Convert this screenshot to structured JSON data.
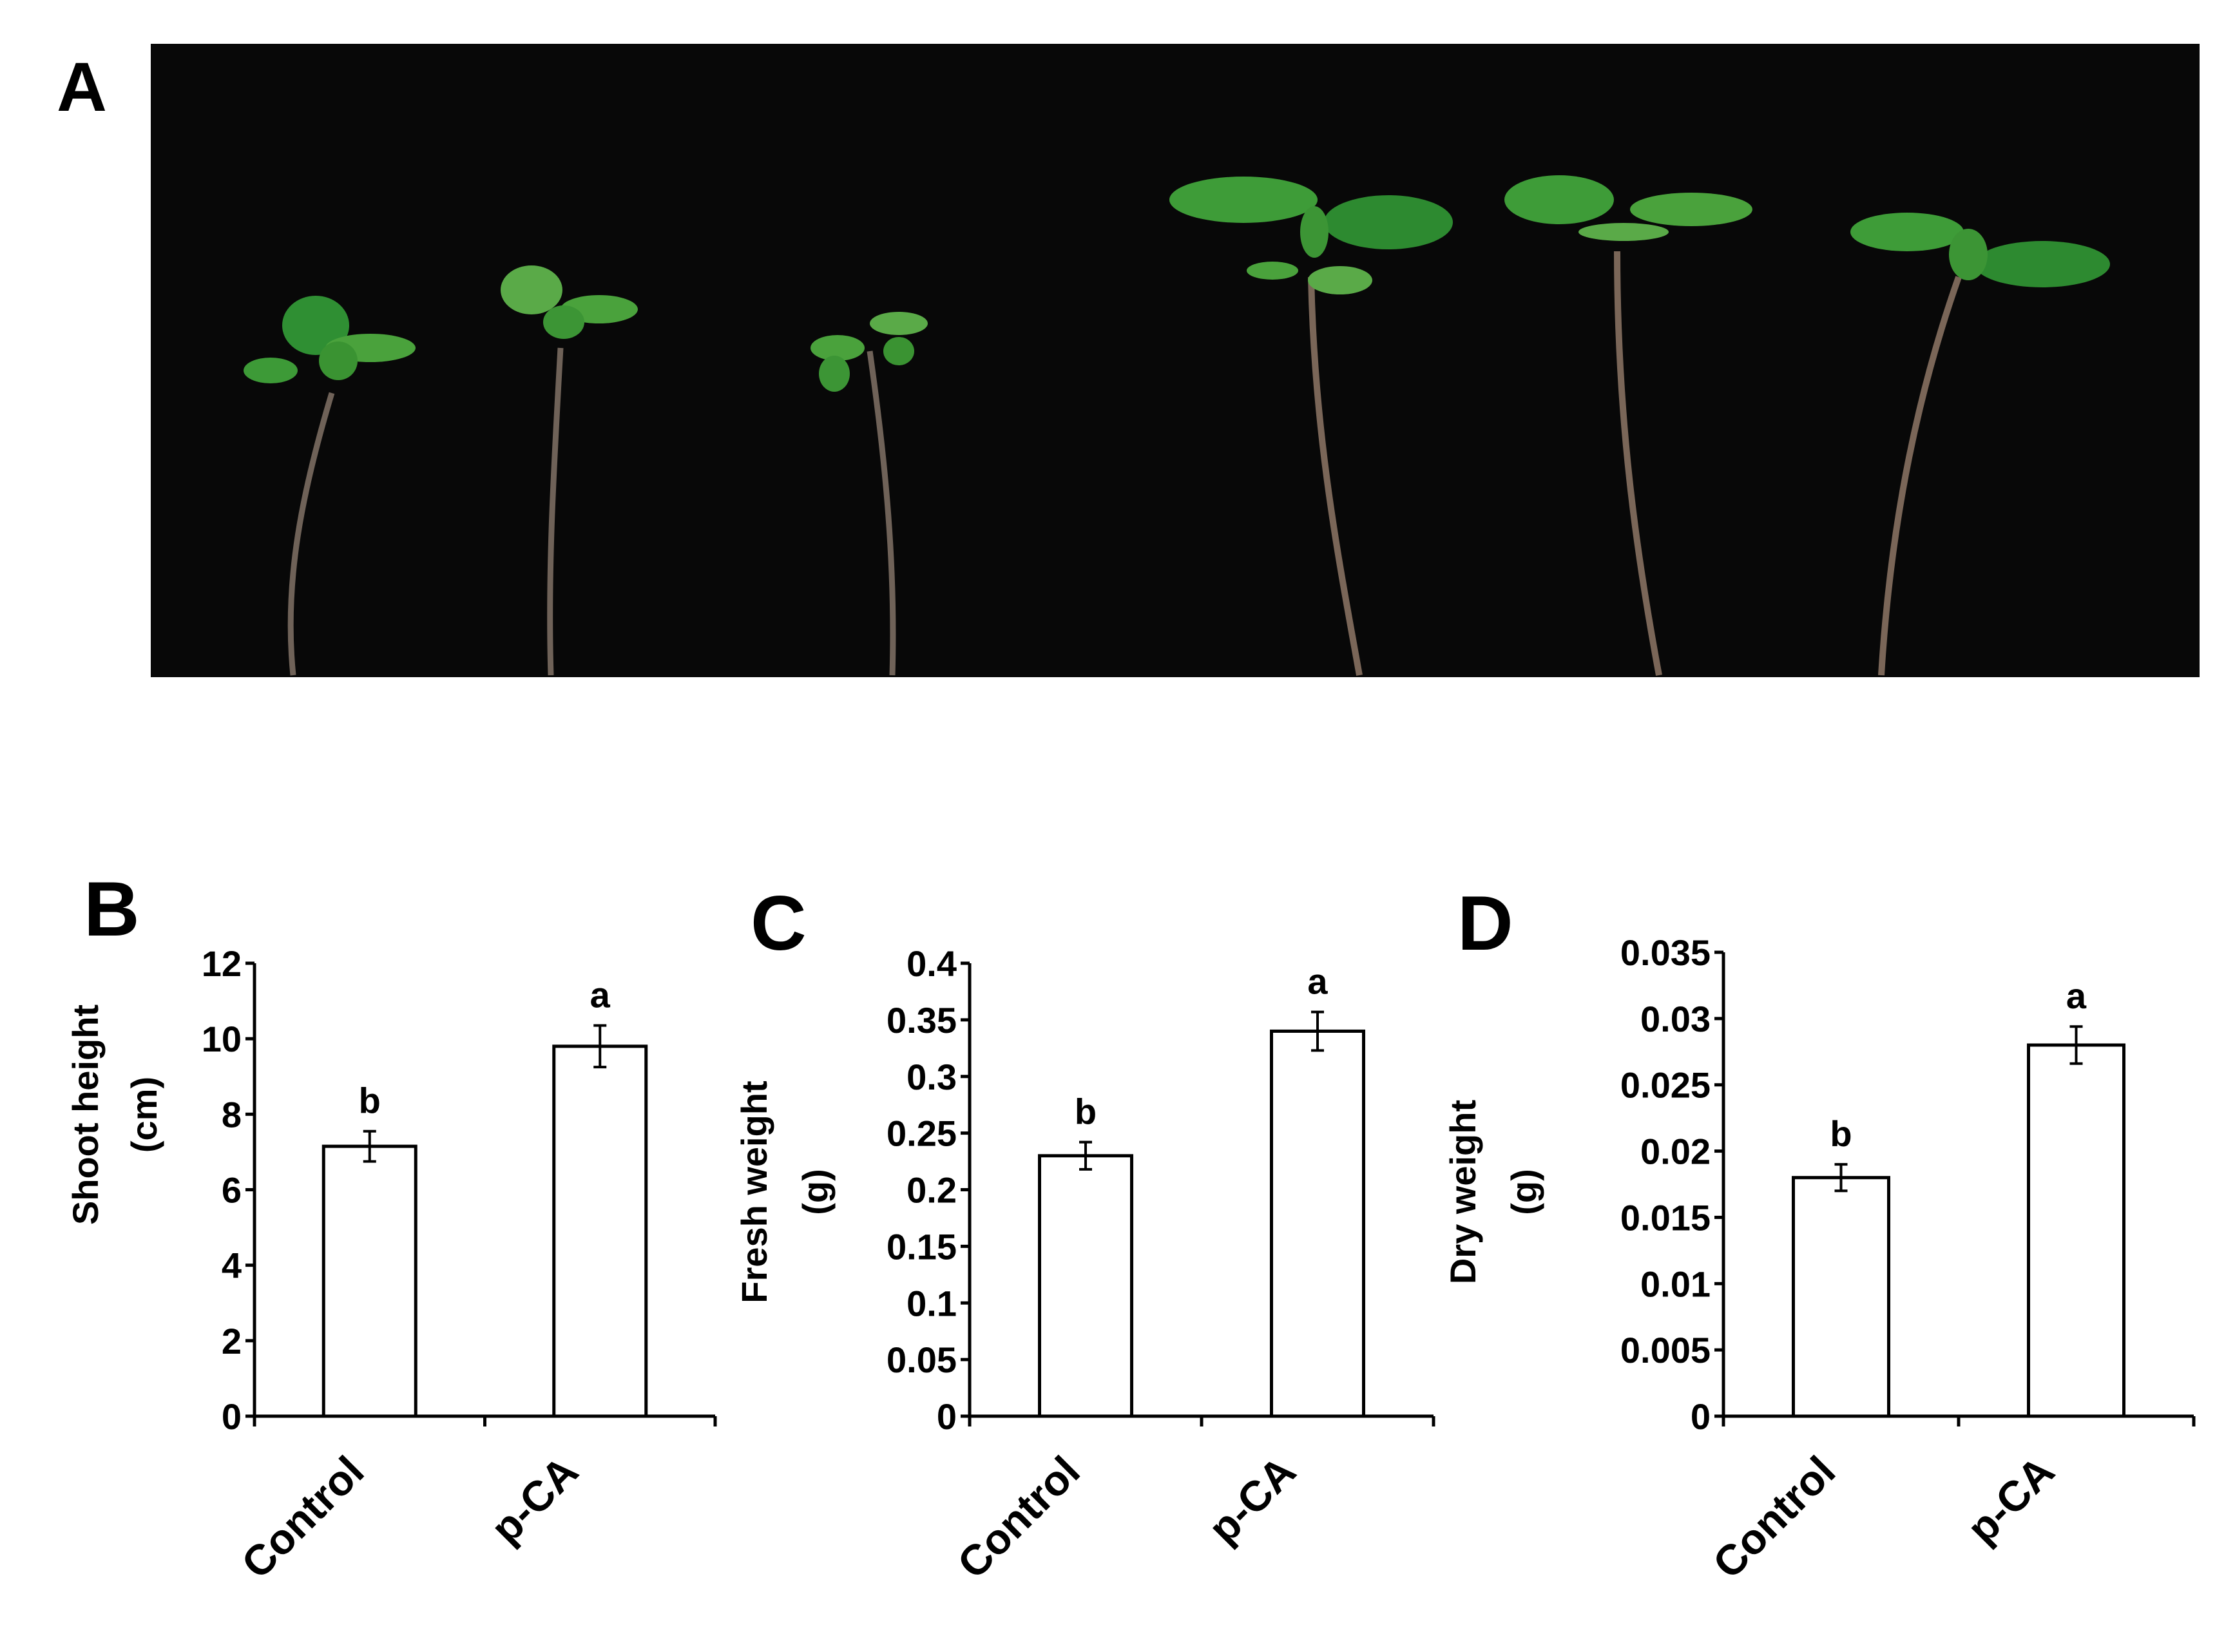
{
  "panels": {
    "a": {
      "letter": "A"
    }
  },
  "chart_data": [
    {
      "type": "bar",
      "panel": "B",
      "categories": [
        "Control",
        "p-CA"
      ],
      "values": [
        7.15,
        9.8
      ],
      "errors": [
        0.4,
        0.55
      ],
      "significance": [
        "b",
        "a"
      ],
      "ylabel_line1": "Shoot height",
      "ylabel_line2": "(cm)",
      "ylim": [
        0,
        12
      ],
      "yticks": [
        "0",
        "2",
        "4",
        "6",
        "8",
        "10",
        "12"
      ]
    },
    {
      "type": "bar",
      "panel": "C",
      "categories": [
        "Control",
        "p-CA"
      ],
      "values": [
        0.23,
        0.34
      ],
      "errors": [
        0.012,
        0.017
      ],
      "significance": [
        "b",
        "a"
      ],
      "ylabel_line1": "Fresh weight",
      "ylabel_line2": "(g)",
      "ylim": [
        0,
        0.4
      ],
      "yticks": [
        "0",
        "0.05",
        "0.1",
        "0.15",
        "0.2",
        "0.25",
        "0.3",
        "0.35",
        "0.4"
      ]
    },
    {
      "type": "bar",
      "panel": "D",
      "categories": [
        "Control",
        "p-CA"
      ],
      "values": [
        0.018,
        0.028
      ],
      "errors": [
        0.001,
        0.0014
      ],
      "significance": [
        "b",
        "a"
      ],
      "ylabel_line1": "Dry weight",
      "ylabel_line2": "(g)",
      "ylim": [
        0,
        0.035
      ],
      "yticks": [
        "0",
        "0.005",
        "0.01",
        "0.015",
        "0.02",
        "0.025",
        "0.03",
        "0.035"
      ]
    }
  ]
}
